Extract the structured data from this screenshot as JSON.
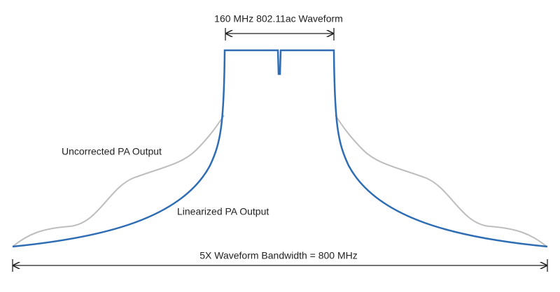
{
  "labels": {
    "top": "160 MHz 802.11ac Waveform",
    "uncorrected": "Uncorrected PA Output",
    "linearized": "Linearized PA Output",
    "bottom": "5X Waveform Bandwidth = 800 MHz"
  }
}
